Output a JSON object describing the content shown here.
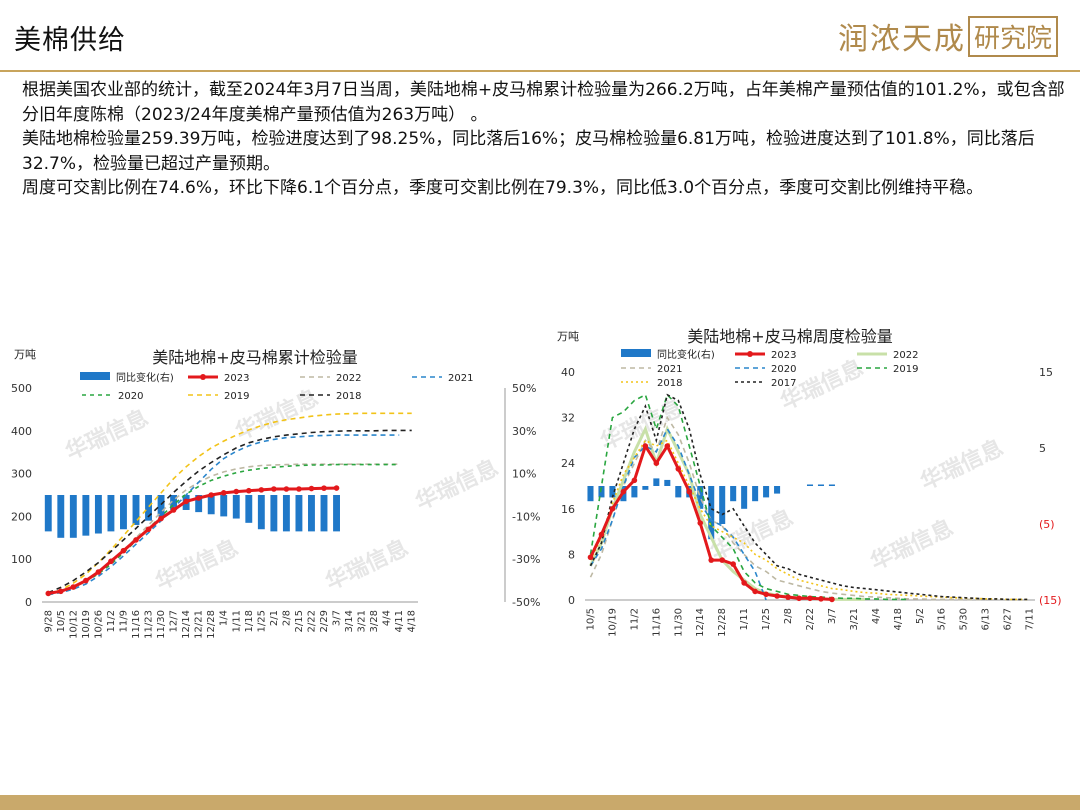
{
  "page": {
    "title": "美棉供给",
    "logo_text": "润浓天成",
    "logo_box": "研究院",
    "paragraphs": [
      "根据美国农业部的统计，截至2024年3月7日当周，美陆地棉+皮马棉累计检验量为266.2万吨，占年美棉产量预估值的101.2%，或包含部分旧年度陈棉（2023/24年度美棉产量预估值为263万吨）  。",
      "美陆地棉检验量259.39万吨，检验进度达到了98.25%，同比落后16%；皮马棉检验量6.81万吨，检验进度达到了101.8%，同比落后32.7%，检验量已超过产量预期。",
      "周度可交割比例在74.6%，环比下降6.1个百分点，季度可交割比例在79.3%，同比低3.0个百分点，季度可交割比例维持平稳。"
    ],
    "watermark": "华瑞信息"
  },
  "chart_data": [
    {
      "type": "line",
      "title": "美陆地棉+皮马棉累计检验量",
      "ylabel": "万吨",
      "ylim": [
        0,
        500
      ],
      "yticks": [
        0,
        100,
        200,
        300,
        400,
        500
      ],
      "y2lim": [
        -50,
        50
      ],
      "y2ticks": [
        "-50%",
        "-30%",
        "-10%",
        "10%",
        "30%",
        "50%"
      ],
      "x": [
        "9/28",
        "10/5",
        "10/12",
        "10/19",
        "10/26",
        "11/2",
        "11/9",
        "11/16",
        "11/23",
        "11/30",
        "12/7",
        "12/14",
        "12/21",
        "12/28",
        "1/4",
        "1/11",
        "1/18",
        "1/25",
        "2/1",
        "2/8",
        "2/15",
        "2/22",
        "2/29",
        "3/7",
        "3/14",
        "3/21",
        "3/28",
        "4/4",
        "4/11",
        "4/18"
      ],
      "x_labels": [
        "9/28",
        "10/5",
        "10/12",
        "10/19",
        "10/26",
        "11/2",
        "11/9",
        "11/16",
        "11/23",
        "11/30",
        "12/7",
        "12/14",
        "12/21",
        "12/28",
        "1/4",
        "1/11",
        "1/18",
        "1/25",
        "2/1",
        "2/8",
        "2/15",
        "2/22",
        "2/29",
        "3/7",
        "3/14",
        "3/21",
        "3/28",
        "4/4",
        "4/11",
        "4/18"
      ],
      "legend_placement": "top",
      "series": [
        {
          "name": "同比变化(右)",
          "kind": "bar",
          "axis": "right",
          "color": "#1f78c8",
          "values": [
            -17,
            -20,
            -20,
            -19,
            -18,
            -17,
            -16,
            -14,
            -12,
            -10,
            -7,
            -7,
            -8,
            -9,
            -10,
            -11,
            -13,
            -16,
            -17,
            -17,
            -17,
            -17,
            -17,
            -17,
            null,
            null,
            null,
            null,
            null,
            null
          ]
        },
        {
          "name": "2023",
          "kind": "line",
          "color": "#e3191c",
          "width": 3,
          "marker": true,
          "values": [
            20,
            25,
            35,
            50,
            70,
            95,
            120,
            145,
            170,
            195,
            215,
            235,
            243,
            250,
            255,
            258,
            260,
            262,
            264,
            264,
            264,
            265,
            266,
            266.2,
            null,
            null,
            null,
            null,
            null,
            null
          ]
        },
        {
          "name": "2022",
          "kind": "line",
          "color": "#bdb8a3",
          "dash": "5,4",
          "values": [
            18,
            24,
            34,
            48,
            68,
            92,
            120,
            150,
            180,
            210,
            238,
            262,
            280,
            294,
            304,
            311,
            316,
            319,
            320,
            321,
            322,
            322,
            322,
            322,
            322,
            322,
            322,
            322,
            322,
            null
          ]
        },
        {
          "name": "2021",
          "kind": "line",
          "color": "#2a86cc",
          "dash": "5,4",
          "values": [
            17,
            22,
            30,
            42,
            60,
            82,
            108,
            135,
            162,
            190,
            220,
            250,
            280,
            310,
            335,
            352,
            365,
            374,
            380,
            384,
            386,
            388,
            389,
            390,
            390,
            390,
            390,
            390,
            390,
            null
          ]
        },
        {
          "name": "2020",
          "kind": "line",
          "color": "#2aa640",
          "dash": "4,4",
          "values": [
            18,
            24,
            34,
            48,
            66,
            88,
            115,
            143,
            172,
            200,
            228,
            252,
            270,
            284,
            294,
            302,
            308,
            312,
            315,
            317,
            319,
            320,
            320,
            321,
            321,
            321,
            321,
            321,
            321,
            null
          ]
        },
        {
          "name": "2019",
          "kind": "line",
          "color": "#f2c318",
          "dash": "5,4",
          "values": [
            20,
            28,
            44,
            65,
            92,
            122,
            155,
            188,
            222,
            255,
            288,
            316,
            340,
            360,
            376,
            390,
            402,
            412,
            420,
            426,
            430,
            434,
            437,
            439,
            440,
            441,
            441,
            441,
            441,
            441
          ]
        },
        {
          "name": "2018",
          "kind": "line",
          "color": "#222222",
          "dash": "5,4",
          "values": [
            22,
            34,
            50,
            70,
            92,
            118,
            145,
            172,
            200,
            228,
            256,
            282,
            306,
            326,
            344,
            360,
            372,
            380,
            386,
            390,
            393,
            396,
            398,
            399,
            400,
            400,
            400,
            401,
            401,
            401
          ]
        }
      ]
    },
    {
      "type": "line",
      "title": "美陆地棉+皮马棉周度检验量",
      "ylabel": "万吨",
      "ylim": [
        0,
        40
      ],
      "yticks": [
        0,
        8,
        16,
        24,
        32,
        40
      ],
      "y2lim": [
        -15,
        15
      ],
      "y2ticks": [
        "(15)",
        "(5)",
        "5",
        "15"
      ],
      "x": [
        "10/5",
        "10/12",
        "10/19",
        "10/26",
        "11/2",
        "11/9",
        "11/16",
        "11/23",
        "11/30",
        "12/7",
        "12/14",
        "12/21",
        "12/28",
        "1/4",
        "1/11",
        "1/18",
        "1/25",
        "2/1",
        "2/8",
        "2/15",
        "2/22",
        "2/29",
        "3/7",
        "3/14",
        "3/21",
        "3/28",
        "4/4",
        "4/11",
        "4/18",
        "4/25",
        "5/2",
        "5/9",
        "5/16",
        "5/23",
        "5/30",
        "6/6",
        "6/13",
        "6/20",
        "6/27",
        "7/4",
        "7/11"
      ],
      "x_labels": [
        "10/5",
        "10/19",
        "11/2",
        "11/16",
        "11/30",
        "12/14",
        "12/28",
        "1/11",
        "1/25",
        "2/8",
        "2/22",
        "3/7",
        "3/21",
        "4/4",
        "4/18",
        "5/2",
        "5/16",
        "5/30",
        "6/13",
        "6/27",
        "7/11"
      ],
      "legend_placement": "top",
      "series": [
        {
          "name": "同比变化(右)",
          "kind": "bar",
          "axis": "right",
          "color": "#1f78c8",
          "values": [
            -2,
            -1.5,
            -1.5,
            -2,
            -1.5,
            -0.5,
            1,
            0.8,
            -1.5,
            -1.5,
            -3,
            -7,
            -5,
            -2,
            -3,
            -2,
            -1.5,
            -1,
            null,
            null,
            0.2,
            0.2,
            0.2,
            null,
            null,
            null,
            null,
            null,
            null,
            null,
            null,
            null,
            null,
            null,
            null,
            null,
            null,
            null,
            null,
            null,
            null
          ]
        },
        {
          "name": "2023",
          "kind": "line",
          "color": "#e3191c",
          "width": 3,
          "marker": true,
          "values": [
            7.5,
            11.5,
            16,
            19,
            21,
            27,
            24,
            27,
            23,
            19,
            13.5,
            7,
            7,
            6.3,
            3,
            1.5,
            1,
            0.7,
            0.5,
            0.3,
            0.3,
            0.2,
            0.1,
            null,
            null,
            null,
            null,
            null,
            null,
            null,
            null,
            null,
            null,
            null,
            null,
            null,
            null,
            null,
            null,
            null,
            null
          ]
        },
        {
          "name": "2022",
          "kind": "line",
          "color": "#c8e0a8",
          "width": 3,
          "values": [
            6,
            10,
            16,
            21,
            26,
            30,
            24,
            30,
            26,
            22,
            15,
            11,
            7,
            5,
            3.5,
            2,
            1.2,
            0.8,
            0.5,
            0.4,
            0.3,
            0.2,
            0.1,
            0.1,
            0.1,
            0.1,
            null,
            null,
            null,
            null,
            null,
            null,
            null,
            null,
            null,
            null,
            null,
            null,
            null,
            null,
            null
          ]
        },
        {
          "name": "2021",
          "kind": "line",
          "color": "#bdb8a3",
          "dash": "5,4",
          "values": [
            4,
            8,
            14,
            20,
            24,
            28,
            26,
            32,
            29,
            24,
            18,
            14,
            13,
            10,
            8,
            6,
            5,
            3.5,
            3,
            2.5,
            2,
            1.5,
            1.2,
            1,
            0.8,
            0.6,
            0.5,
            0.4,
            0.3,
            0.2,
            0.2,
            0.1,
            0.1,
            0.1,
            0.1,
            0.1,
            0.1,
            null,
            null,
            null,
            null
          ]
        },
        {
          "name": "2020",
          "kind": "line",
          "color": "#2a86cc",
          "dash": "5,4",
          "values": [
            6,
            9,
            14,
            20,
            25,
            27,
            26,
            30,
            27,
            22,
            17,
            14,
            13,
            11,
            8,
            5,
            0,
            null,
            null,
            null,
            null,
            null,
            null,
            null,
            null,
            null,
            null,
            null,
            null,
            null,
            null,
            null,
            null,
            null,
            null,
            null,
            null,
            null,
            null,
            null,
            null
          ]
        },
        {
          "name": "2019",
          "kind": "line",
          "color": "#2aa640",
          "dash": "5,4",
          "values": [
            8,
            20,
            32,
            33,
            35,
            36,
            30,
            36,
            34,
            27,
            20,
            13,
            11,
            9,
            5,
            3,
            2,
            1.5,
            1,
            0.8,
            0.6,
            0.5,
            0.4,
            0.3,
            0.3,
            0.2,
            0.2,
            0.1,
            0.1,
            0.1,
            null,
            null,
            null,
            null,
            null,
            null,
            null,
            null,
            null,
            null,
            null
          ]
        },
        {
          "name": "2018",
          "kind": "line",
          "color": "#f2c318",
          "dash": "2,3",
          "values": [
            7,
            11,
            17,
            22,
            25,
            28,
            27,
            28,
            24,
            20,
            16,
            13,
            12,
            11,
            10,
            8,
            7,
            5.5,
            4.5,
            3.5,
            3,
            2.5,
            2,
            1.8,
            1.5,
            1.3,
            1.2,
            1,
            0.9,
            0.8,
            0.7,
            0.6,
            0.5,
            0.4,
            0.3,
            0.3,
            0.2,
            0.2,
            0.1,
            0.1,
            0.1
          ]
        },
        {
          "name": "2017",
          "kind": "line",
          "color": "#222222",
          "dash": "3,3",
          "values": [
            6,
            10,
            18,
            24,
            30,
            34,
            28,
            36,
            35,
            30,
            22,
            16,
            15,
            16,
            13,
            10,
            8,
            6,
            5.5,
            4.5,
            4,
            3.5,
            3,
            2.5,
            2.2,
            2,
            1.8,
            1.6,
            1.4,
            1.2,
            1,
            0.8,
            0.6,
            0.5,
            0.4,
            0.3,
            0.2,
            0.2,
            0.1,
            0.1,
            0.1
          ]
        }
      ]
    }
  ]
}
